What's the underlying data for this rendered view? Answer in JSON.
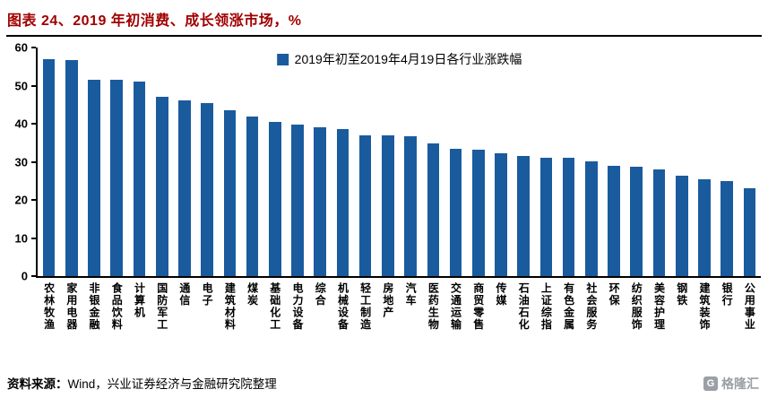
{
  "header": {
    "title": "图表 24、2019 年初消费、成长领涨市场，%"
  },
  "footer": {
    "source_label": "资料来源：",
    "source_text": "Wind，兴业证券经济与金融研究院整理",
    "watermark_initial": "G",
    "watermark_text": "格隆汇"
  },
  "colors": {
    "title": "#A00000",
    "bar": "#1A5B9E",
    "axis": "#000000"
  },
  "chart_data": {
    "type": "bar",
    "title": "图表 24、2019 年初消费、成长领涨市场，%",
    "legend": "2019年初至2019年4月19日各行业涨跌幅",
    "legend_position": "top-center",
    "grid": false,
    "ylim": [
      0,
      60
    ],
    "yticks": [
      0,
      10,
      20,
      30,
      40,
      50,
      60
    ],
    "bar_color": "#1A5B9E",
    "categories": [
      "农林牧渔",
      "家用电器",
      "非银金融",
      "食品饮料",
      "计算机",
      "国防军工",
      "通信",
      "电子",
      "建筑材料",
      "煤炭",
      "基础化工",
      "电力设备",
      "综合",
      "机械设备",
      "轻工制造",
      "房地产",
      "汽车",
      "医药生物",
      "交通运输",
      "商贸零售",
      "传媒",
      "石油石化",
      "上证综指",
      "有色金属",
      "社会服务",
      "环保",
      "纺织服饰",
      "美容护理",
      "钢铁",
      "建筑装饰",
      "银行",
      "公用事业"
    ],
    "values": [
      57,
      56.8,
      51.5,
      51.5,
      51,
      47,
      46.2,
      45.3,
      43.5,
      42,
      40.5,
      39.8,
      39,
      38.6,
      37,
      37,
      36.7,
      34.8,
      33.5,
      33.2,
      32.3,
      31.5,
      31,
      31,
      30.2,
      29,
      28.8,
      28,
      26.3,
      25.3,
      25,
      23
    ]
  }
}
